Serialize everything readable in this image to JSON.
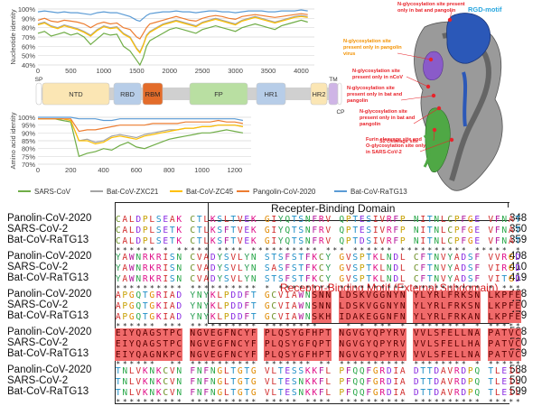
{
  "nt_chart": {
    "ylabel": "Nucleotide identity",
    "yticks": [
      "100%",
      "90%",
      "80%",
      "70%",
      "60%",
      "50%",
      "40%"
    ],
    "xticks": [
      "0",
      "500",
      "1000",
      "1500",
      "2000",
      "2500",
      "3000",
      "3500",
      "4000"
    ],
    "xlim": [
      0,
      4200
    ],
    "ylim": [
      40,
      100
    ]
  },
  "aa_chart": {
    "ylabel": "Amino acid identity",
    "yticks": [
      "100%",
      "95%",
      "90%",
      "85%",
      "80%",
      "75%",
      "70%"
    ],
    "xticks": [
      "0",
      "200",
      "400",
      "600",
      "800",
      "1000",
      "1200"
    ],
    "xlim": [
      0,
      1300
    ],
    "ylim": [
      70,
      100
    ]
  },
  "domains": [
    {
      "label": "SP",
      "color": "#ffffff"
    },
    {
      "label": "NTD",
      "color": "#fbe6b4"
    },
    {
      "label": "RBD",
      "color": "#b7cde8"
    },
    {
      "label": "RBM",
      "color": "#e36c2a"
    },
    {
      "label": "FP",
      "color": "#b9dfa2"
    },
    {
      "label": "HR1",
      "color": "#b7cde8"
    },
    {
      "label": "HR2",
      "color": "#fbe6b4"
    },
    {
      "label": "TM",
      "color": "#cfb5e6"
    },
    {
      "label": "CP",
      "color": "#ffffff"
    }
  ],
  "legend": [
    {
      "label": "SARS-CoV",
      "color": "#70ad47"
    },
    {
      "label": "Bat-CoV-ZXC21",
      "color": "#a5a5a5"
    },
    {
      "label": "Bat-CoV-ZC45",
      "color": "#ffc000"
    },
    {
      "label": "Pangolin-CoV-2020",
      "color": "#ed7d31"
    },
    {
      "label": "Bat-CoV-RaTG13",
      "color": "#5b9bd5"
    }
  ],
  "chart_data": [
    {
      "type": "line",
      "title": "",
      "xlabel": "",
      "ylabel": "Nucleotide identity",
      "xlim": [
        0,
        4200
      ],
      "ylim": [
        40,
        100
      ],
      "x": [
        0,
        100,
        200,
        300,
        400,
        500,
        600,
        700,
        800,
        900,
        1000,
        1100,
        1200,
        1300,
        1400,
        1500,
        1550,
        1600,
        1650,
        1700,
        1800,
        1900,
        2000,
        2100,
        2200,
        2300,
        2400,
        2500,
        2600,
        2700,
        2800,
        2900,
        3000,
        3100,
        3200,
        3300,
        3400,
        3500,
        3600,
        3700,
        3800,
        3900,
        4000,
        4100
      ],
      "series": [
        {
          "name": "SARS-CoV",
          "values": [
            74,
            76,
            71,
            73,
            75,
            72,
            74,
            70,
            62,
            68,
            74,
            72,
            73,
            60,
            55,
            45,
            40,
            48,
            60,
            66,
            70,
            74,
            78,
            80,
            78,
            76,
            74,
            78,
            80,
            82,
            80,
            78,
            76,
            80,
            82,
            84,
            82,
            80,
            78,
            82,
            84,
            86,
            88,
            86
          ]
        },
        {
          "name": "Bat-CoV-ZXC21",
          "values": [
            84,
            86,
            82,
            80,
            83,
            81,
            79,
            76,
            72,
            78,
            82,
            80,
            81,
            74,
            70,
            58,
            54,
            62,
            72,
            76,
            80,
            84,
            86,
            88,
            86,
            84,
            82,
            86,
            88,
            90,
            88,
            86,
            84,
            88,
            90,
            92,
            90,
            88,
            86,
            88,
            90,
            92,
            93,
            92
          ]
        },
        {
          "name": "Bat-CoV-ZC45",
          "values": [
            83,
            85,
            81,
            79,
            82,
            80,
            78,
            75,
            71,
            77,
            81,
            79,
            80,
            73,
            69,
            57,
            53,
            61,
            71,
            75,
            79,
            83,
            85,
            87,
            85,
            83,
            81,
            85,
            87,
            89,
            87,
            85,
            83,
            87,
            89,
            91,
            89,
            87,
            85,
            87,
            89,
            91,
            92,
            91
          ]
        },
        {
          "name": "Pangolin-CoV-2020",
          "values": [
            88,
            90,
            87,
            86,
            88,
            87,
            86,
            84,
            80,
            84,
            86,
            84,
            85,
            80,
            78,
            70,
            68,
            74,
            80,
            84,
            86,
            88,
            90,
            92,
            90,
            88,
            87,
            90,
            92,
            93,
            92,
            90,
            89,
            92,
            93,
            94,
            93,
            92,
            91,
            92,
            93,
            94,
            95,
            94
          ]
        },
        {
          "name": "Bat-CoV-RaTG13",
          "values": [
            97,
            98,
            97,
            96,
            97,
            96,
            96,
            95,
            94,
            96,
            97,
            96,
            96,
            94,
            92,
            88,
            87,
            90,
            93,
            95,
            96,
            97,
            97,
            98,
            97,
            97,
            96,
            97,
            98,
            98,
            97,
            97,
            96,
            97,
            98,
            98,
            98,
            97,
            97,
            98,
            98,
            98,
            99,
            98
          ]
        }
      ]
    },
    {
      "type": "line",
      "title": "",
      "xlabel": "",
      "ylabel": "Amino acid identity",
      "xlim": [
        0,
        1300
      ],
      "ylim": [
        70,
        100
      ],
      "x": [
        0,
        50,
        100,
        150,
        200,
        250,
        300,
        350,
        400,
        450,
        500,
        550,
        600,
        650,
        700,
        750,
        800,
        850,
        900,
        950,
        1000,
        1050,
        1100,
        1150,
        1200,
        1250
      ],
      "series": [
        {
          "name": "SARS-CoV",
          "values": [
            99,
            99,
            99,
            98,
            97,
            75,
            77,
            78,
            80,
            79,
            82,
            84,
            81,
            80,
            82,
            84,
            86,
            87,
            88,
            89,
            90,
            90,
            91,
            92,
            91,
            90
          ]
        },
        {
          "name": "Bat-CoV-ZXC21",
          "values": [
            99,
            99,
            99,
            99,
            98,
            85,
            86,
            84,
            85,
            88,
            89,
            88,
            87,
            89,
            90,
            91,
            92,
            92,
            93,
            93,
            94,
            94,
            95,
            95,
            95,
            94
          ]
        },
        {
          "name": "Bat-CoV-ZC45",
          "values": [
            99,
            99,
            99,
            99,
            98,
            85,
            85,
            83,
            84,
            87,
            88,
            87,
            86,
            88,
            89,
            90,
            91,
            92,
            93,
            93,
            94,
            94,
            95,
            95,
            95,
            94
          ]
        },
        {
          "name": "Pangolin-CoV-2020",
          "values": [
            99,
            99,
            99,
            99,
            99,
            91,
            92,
            92,
            93,
            94,
            95,
            95,
            95,
            95,
            96,
            96,
            96,
            96,
            97,
            97,
            97,
            97,
            98,
            97,
            97,
            96
          ]
        },
        {
          "name": "Bat-CoV-RaTG13",
          "values": [
            100,
            100,
            100,
            100,
            100,
            99,
            99,
            99,
            98,
            98,
            99,
            99,
            99,
            99,
            99,
            99,
            99,
            99,
            99,
            99,
            99,
            99,
            99,
            99,
            99,
            98
          ]
        }
      ]
    }
  ],
  "structure_labels": [
    {
      "text": "N-glycosylation site present only in bat and pangolin",
      "color": "#e8232a"
    },
    {
      "text": "RGD-motif",
      "color": "#29a7df"
    },
    {
      "text": "N-glycosylation site present only in pangolin virus",
      "color": "#f39200"
    },
    {
      "text": "N-glycosylation site present only in nCoV",
      "color": "#e8232a"
    },
    {
      "text": "N-glycosylation site present only in bat and pangolin",
      "color": "#e8232a"
    },
    {
      "text": "N-glycosylation site present only in bat and pangolin",
      "color": "#e8232a"
    },
    {
      "text": "S2'cleavage site",
      "color": "#e8232a"
    },
    {
      "text": "Furin cleavage site and O-glycosylation site only in SARS-CoV-2",
      "color": "#e8232a"
    }
  ],
  "alignment": {
    "rbd_title": "Recepter-Binding Domain",
    "rbm_title": "Receptor-Binding Motif (External Subdomain)",
    "blocks": [
      {
        "names": [
          "Panolin-CoV-2020",
          "SARS-CoV-2",
          "Bat-CoV-RaTG13"
        ],
        "ends": [
          "348",
          "350",
          "359"
        ],
        "seqs": [
          "CALDPLSEAK CTLKSLTVEK GIYQTSNFRV QPTESIVRFP NITNLCPFGE VFNATTFASV",
          "CALDPLSETK CTLKSFTVEK GIYQTSNFRV QPTESIVRFP NITNLCPFGE VFNATRFASV",
          "CALDPLSETK CTLKSFTVEK GIYQTSNFRV QPTDSIVRFP NITNLCPFGE VFNATTFASV"
        ],
        "cons": "****** * ***** **** ********** *** ****** ********** ***** ****"
      },
      {
        "names": [
          "Panolin-CoV-2020",
          "SARS-CoV-2",
          "Bat-CoV-RaTG13"
        ],
        "ends": [
          "408",
          "410",
          "419"
        ],
        "seqs": [
          "YAWNRKRISN CVADYSVLYN STSFSTFKCY GVSPTKLNDL CFTNVYADSF VVRGDEVRQI",
          "YAWNRKRISN CVADYSVLYN SASFSTFKCY GVSPTKLNDL CFTNVYADSF VIRGDEVRQI",
          "YAWNRKRISN CVADYSVLYN STSFSTFKCY GVSPTKLNDL CFTNVYADSF VITGDEVRQI"
        ],
        "cons": "********** ********** * ******** ********** ********** * ******* "
      },
      {
        "names": [
          "Panolin-CoV-2020",
          "SARS-CoV-2",
          "Bat-CoV-RaTG13"
        ],
        "ends": [
          "468",
          "470",
          "479"
        ],
        "seqs": [
          "APGQTGRIAD YNYKLPDDFT GCVIAWNSNN LDSKVGGNYN YLYRLFRKSN LKPFERDIST",
          "APGQTGKIAD YNYKLPDDFT GCVIAWNSNN LDSKVGGNYN YLYRLFRKSN LKPFERDIST",
          "APGQTGKIAD YNYKLPDDFT GCVIAWNSKH IDAKEGGNFN YLYRLFRKAN LKPFERDIST"
        ],
        "cons": "****** *** ********** ********    * * *** * ******** * **********"
      },
      {
        "names": [
          "Panolin-CoV-2020",
          "SARS-CoV-2",
          "Bat-CoV-RaTG13"
        ],
        "ends": [
          "528",
          "530",
          "539"
        ],
        "seqs": [
          "EIYQAGSTPC NGVEGFNCYF PLQSYGFHPT NGVGYQPYRV VVLSFELLNA PATVCGPKQS",
          "EIYQAGSTPC NGVEGFNCYF PLQSYGFQPT NGVGYQPYRV VVLSFELLHA PATVCGPKKS",
          "EIYQAGNKPC NGVEGFNCYF PLQSYGFHPT NGVGYQPYRV VVLSFELLNA PATVCGPKKS"
        ],
        "cons": "******  ** ********** ******* ** ********** ******** * ******* *"
      },
      {
        "names": [
          "Panolin-CoV-2020",
          "SARS-CoV-2",
          "Bat-CoV-RaTG13"
        ],
        "ends": [
          "588",
          "590",
          "599"
        ],
        "seqs": [
          "TNLVKNKCVN FNFNGLTGTG VLTESSKKFL PFQQFGRDIA DTTDAVRDPQ TLEILDITPC",
          "TNLVKNKCVN FNFNGLTGTG VLTESNKKFL PFQQFGRDIA DTTDAVRDPQ TLEILDITPC",
          "TNLVKNKCVN FNFNGLTGTG VLTESNKKFL PFQQFGRDIA DTTDAVRDPQ TLEILDITPC"
        ],
        "cons": "********** ********** ***** **** ********** ********** **********"
      }
    ]
  }
}
